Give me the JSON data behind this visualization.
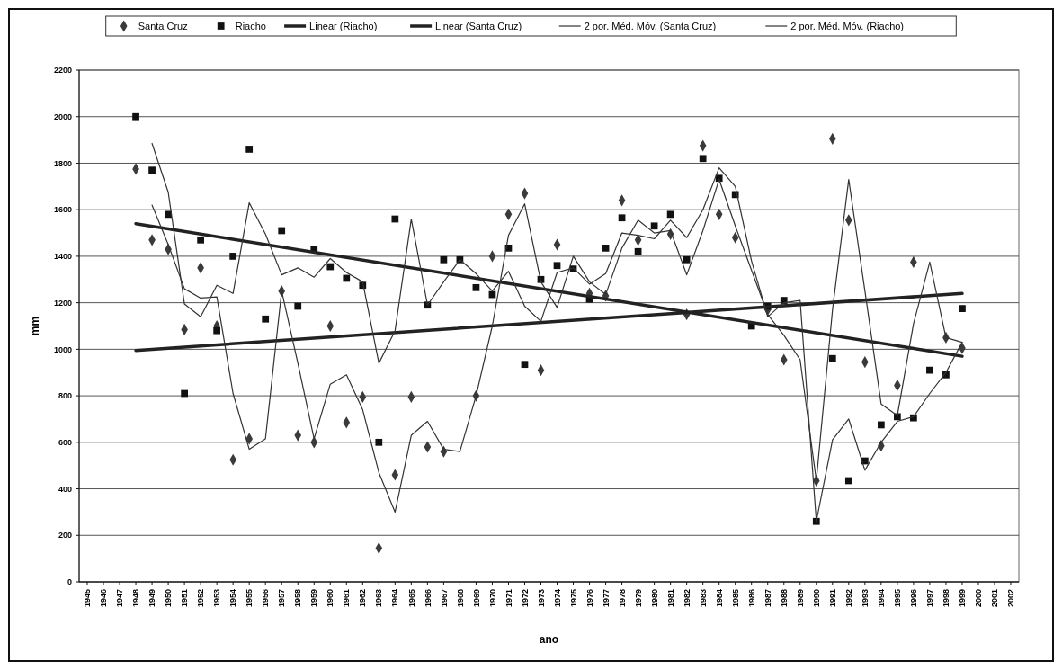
{
  "chart_data": {
    "type": "scatter",
    "xlabel": "ano",
    "ylabel": "mm",
    "categories": [
      "1945",
      "1946",
      "1947",
      "1948",
      "1949",
      "1950",
      "1951",
      "1952",
      "1953",
      "1954",
      "1955",
      "1956",
      "1957",
      "1958",
      "1959",
      "1960",
      "1961",
      "1962",
      "1963",
      "1964",
      "1965",
      "1966",
      "1967",
      "1968",
      "1969",
      "1970",
      "1971",
      "1972",
      "1973",
      "1974",
      "1975",
      "1976",
      "1977",
      "1978",
      "1979",
      "1980",
      "1981",
      "1982",
      "1983",
      "1984",
      "1985",
      "1986",
      "1987",
      "1988",
      "1989",
      "1990",
      "1991",
      "1992",
      "1993",
      "1994",
      "1995",
      "1996",
      "1997",
      "1998",
      "1999",
      "2000",
      "2001",
      "2002"
    ],
    "ylim": [
      0,
      2200
    ],
    "yticks": [
      0,
      200,
      400,
      600,
      800,
      1000,
      1200,
      1400,
      1600,
      1800,
      2000,
      2200
    ],
    "grid": "y",
    "legend": "top",
    "series": [
      {
        "name": "Santa Cruz",
        "marker": "diamond",
        "color": "#3a3a3a",
        "values": [
          null,
          null,
          null,
          1775,
          1470,
          1430,
          1085,
          1350,
          1100,
          525,
          615,
          null,
          1250,
          630,
          600,
          1100,
          685,
          795,
          145,
          460,
          795,
          580,
          560,
          null,
          800,
          1400,
          1580,
          1670,
          910,
          1450,
          null,
          1240,
          1230,
          1640,
          1470,
          null,
          1495,
          1150,
          1875,
          1580,
          1480,
          null,
          1170,
          955,
          null,
          435,
          1905,
          1555,
          945,
          585,
          845,
          1375,
          null,
          1050,
          1005,
          null,
          null,
          null
        ]
      },
      {
        "name": "Riacho",
        "marker": "square",
        "color": "#111111",
        "values": [
          null,
          null,
          null,
          2000,
          1770,
          1580,
          810,
          1470,
          1080,
          1400,
          1860,
          1130,
          1510,
          1185,
          1430,
          1355,
          1305,
          1275,
          600,
          1560,
          null,
          1190,
          1385,
          1385,
          1265,
          1235,
          1435,
          935,
          1300,
          1360,
          1345,
          1215,
          1435,
          1565,
          1420,
          1530,
          1580,
          1385,
          1820,
          1735,
          1665,
          1100,
          1185,
          1210,
          null,
          260,
          960,
          435,
          520,
          675,
          710,
          705,
          910,
          890,
          1175,
          null,
          null,
          null
        ]
      },
      {
        "name": "Linear (Riacho)",
        "type": "line",
        "marker": "none",
        "color": "#222222",
        "values": [
          null,
          null,
          null,
          1540,
          null,
          null,
          null,
          null,
          null,
          null,
          null,
          null,
          null,
          null,
          null,
          null,
          null,
          null,
          null,
          null,
          null,
          null,
          null,
          null,
          null,
          null,
          null,
          null,
          null,
          null,
          null,
          null,
          null,
          null,
          null,
          null,
          null,
          null,
          null,
          null,
          null,
          null,
          null,
          null,
          null,
          null,
          null,
          null,
          null,
          null,
          null,
          null,
          null,
          null,
          970,
          null,
          null,
          null
        ]
      },
      {
        "name": "Linear (Santa Cruz)",
        "type": "line",
        "marker": "none",
        "color": "#222222",
        "values": [
          null,
          null,
          null,
          995,
          null,
          null,
          null,
          null,
          null,
          null,
          null,
          null,
          null,
          null,
          null,
          null,
          null,
          null,
          null,
          null,
          null,
          null,
          null,
          null,
          null,
          null,
          null,
          null,
          null,
          null,
          null,
          null,
          null,
          null,
          null,
          null,
          null,
          null,
          null,
          null,
          null,
          null,
          null,
          null,
          null,
          null,
          null,
          null,
          null,
          null,
          null,
          null,
          null,
          null,
          1240,
          null,
          null,
          null
        ]
      },
      {
        "name": "2 por. Méd. Móv. (Santa Cruz)",
        "type": "line",
        "marker": "none",
        "color": "#333333",
        "values": [
          null,
          null,
          null,
          null,
          1620,
          1450,
          1260,
          1220,
          1225,
          810,
          570,
          615,
          1250,
          940,
          615,
          850,
          890,
          740,
          470,
          300,
          630,
          690,
          570,
          560,
          800,
          1100,
          1490,
          1625,
          1290,
          1180,
          1400,
          1290,
          1235,
          1435,
          1555,
          1500,
          1510,
          1320,
          1510,
          1730,
          1530,
          1340,
          1150,
          1060,
          955,
          435,
          1170,
          1730,
          1250,
          765,
          715,
          1110,
          1375,
          1050,
          1030,
          null,
          null,
          null
        ]
      },
      {
        "name": "2 por. Méd. Móv. (Riacho)",
        "type": "line",
        "marker": "none",
        "color": "#333333",
        "values": [
          null,
          null,
          null,
          null,
          1885,
          1675,
          1195,
          1140,
          1275,
          1240,
          1630,
          1495,
          1320,
          1350,
          1310,
          1390,
          1330,
          1290,
          940,
          1080,
          1560,
          1190,
          1290,
          1385,
          1325,
          1250,
          1335,
          1185,
          1120,
          1330,
          1350,
          1280,
          1325,
          1500,
          1490,
          1475,
          1555,
          1480,
          1600,
          1780,
          1700,
          1380,
          1140,
          1200,
          1210,
          260,
          610,
          700,
          480,
          600,
          690,
          710,
          810,
          900,
          1030,
          null,
          null,
          null
        ]
      }
    ]
  }
}
